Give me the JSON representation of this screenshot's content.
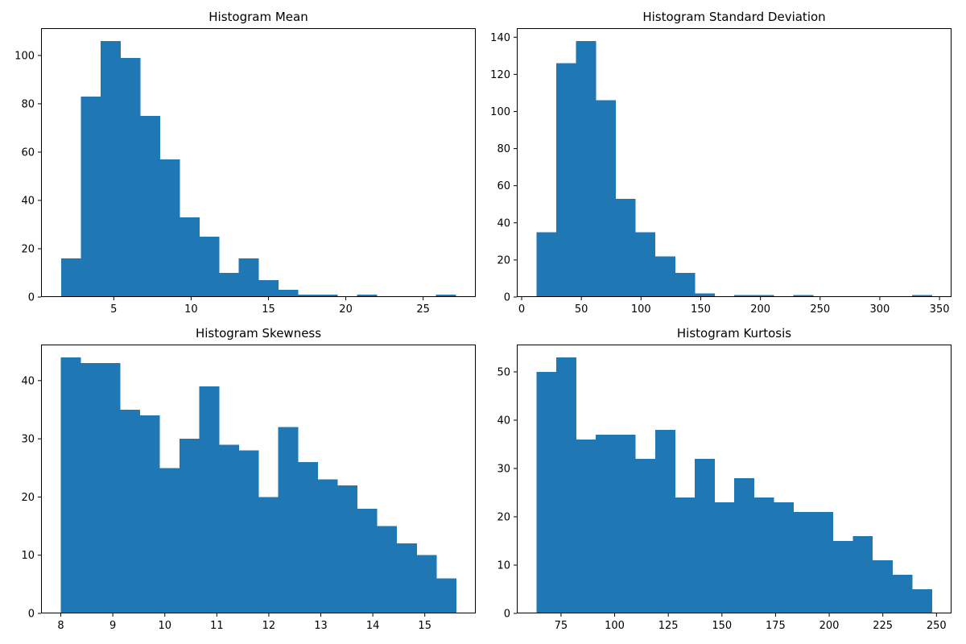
{
  "chart_data": [
    {
      "type": "bar",
      "title": "Histogram Mean",
      "xlabel": "",
      "ylabel": "",
      "bin_edges": [
        1.6,
        2.875,
        4.15,
        5.425,
        6.7,
        7.975,
        9.25,
        10.525,
        11.8,
        13.075,
        14.35,
        15.625,
        16.9,
        18.175,
        19.45,
        20.725,
        22.0,
        23.275,
        24.55,
        25.825,
        27.1
      ],
      "values": [
        16,
        83,
        106,
        99,
        75,
        57,
        33,
        25,
        10,
        16,
        7,
        3,
        1,
        1,
        0,
        1,
        0,
        0,
        0,
        1
      ],
      "xlim": [
        0.3,
        28.4
      ],
      "ylim": [
        0,
        111.3
      ],
      "xticks": [
        5,
        10,
        15,
        20,
        25
      ],
      "yticks": [
        0,
        20,
        40,
        60,
        80,
        100
      ],
      "color": "#1f77b4"
    },
    {
      "type": "bar",
      "title": "Histogram Standard Deviation",
      "xlabel": "",
      "ylabel": "",
      "bin_edges": [
        12.5,
        29.05,
        45.6,
        62.15,
        78.7,
        95.25,
        111.8,
        128.35,
        144.9,
        161.45,
        178.0,
        194.55,
        211.1,
        227.65,
        244.2,
        260.75,
        277.3,
        293.85,
        310.4,
        326.95,
        343.5
      ],
      "values": [
        35,
        126,
        138,
        106,
        53,
        35,
        22,
        13,
        2,
        0,
        1,
        1,
        0,
        1,
        0,
        0,
        0,
        0,
        0,
        1
      ],
      "xlim": [
        -4.05,
        360.05
      ],
      "ylim": [
        0,
        144.9
      ],
      "xticks": [
        0,
        50,
        100,
        150,
        200,
        250,
        300,
        350
      ],
      "yticks": [
        0,
        20,
        40,
        60,
        80,
        100,
        120,
        140
      ],
      "color": "#1f77b4"
    },
    {
      "type": "bar",
      "title": "Histogram Skewness",
      "xlabel": "",
      "ylabel": "",
      "bin_edges": [
        8.0,
        8.38,
        8.76,
        9.14,
        9.52,
        9.9,
        10.28,
        10.66,
        11.04,
        11.42,
        11.8,
        12.18,
        12.56,
        12.94,
        13.32,
        13.7,
        14.08,
        14.46,
        14.84,
        15.22,
        15.6
      ],
      "values": [
        44,
        43,
        43,
        35,
        34,
        25,
        30,
        39,
        29,
        28,
        20,
        32,
        26,
        23,
        22,
        18,
        15,
        12,
        10,
        6
      ],
      "xlim": [
        7.62,
        15.98
      ],
      "ylim": [
        0,
        46.2
      ],
      "xticks": [
        8,
        9,
        10,
        11,
        12,
        13,
        14,
        15
      ],
      "yticks": [
        0,
        10,
        20,
        30,
        40
      ],
      "color": "#1f77b4"
    },
    {
      "type": "bar",
      "title": "Histogram Kurtosis",
      "xlabel": "",
      "ylabel": "",
      "bin_edges": [
        63.6,
        72.81,
        82.02,
        91.23,
        100.44,
        109.65,
        118.86,
        128.07,
        137.28,
        146.49,
        155.7,
        164.91,
        174.12,
        183.33,
        192.54,
        201.75,
        210.96,
        220.17,
        229.38,
        238.59,
        247.8
      ],
      "values": [
        50,
        53,
        36,
        37,
        37,
        32,
        38,
        24,
        32,
        23,
        28,
        24,
        23,
        21,
        21,
        15,
        16,
        11,
        8,
        5
      ],
      "xlim": [
        54.39,
        257.01
      ],
      "ylim": [
        0,
        55.65
      ],
      "xticks": [
        75,
        100,
        125,
        150,
        175,
        200,
        225,
        250
      ],
      "yticks": [
        0,
        10,
        20,
        30,
        40,
        50
      ],
      "color": "#1f77b4"
    }
  ]
}
